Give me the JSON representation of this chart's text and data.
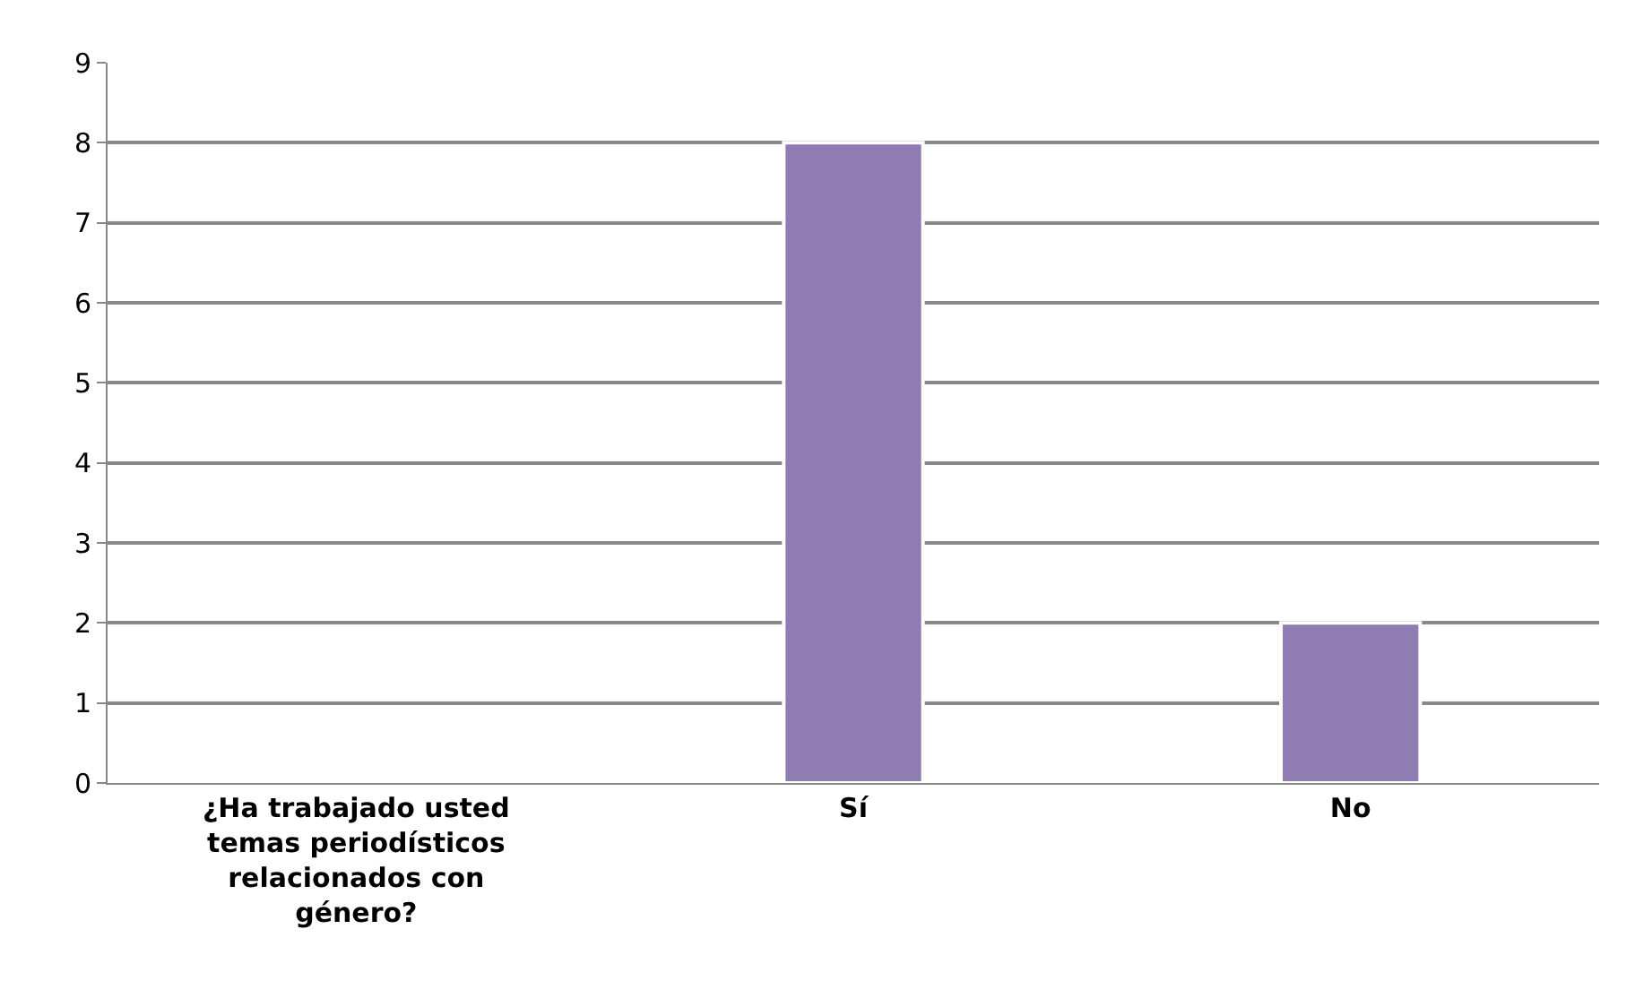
{
  "chart_data": {
    "type": "bar",
    "categories": [
      "¿Ha trabajado usted temas periodísticos relacionados con género?",
      "Sí",
      "No"
    ],
    "values": [
      null,
      8,
      2
    ],
    "color": "#8e7cb3",
    "ylim": [
      0,
      9
    ],
    "yticks": [
      0,
      1,
      2,
      3,
      4,
      5,
      6,
      7,
      8,
      9
    ],
    "grid": "y"
  }
}
